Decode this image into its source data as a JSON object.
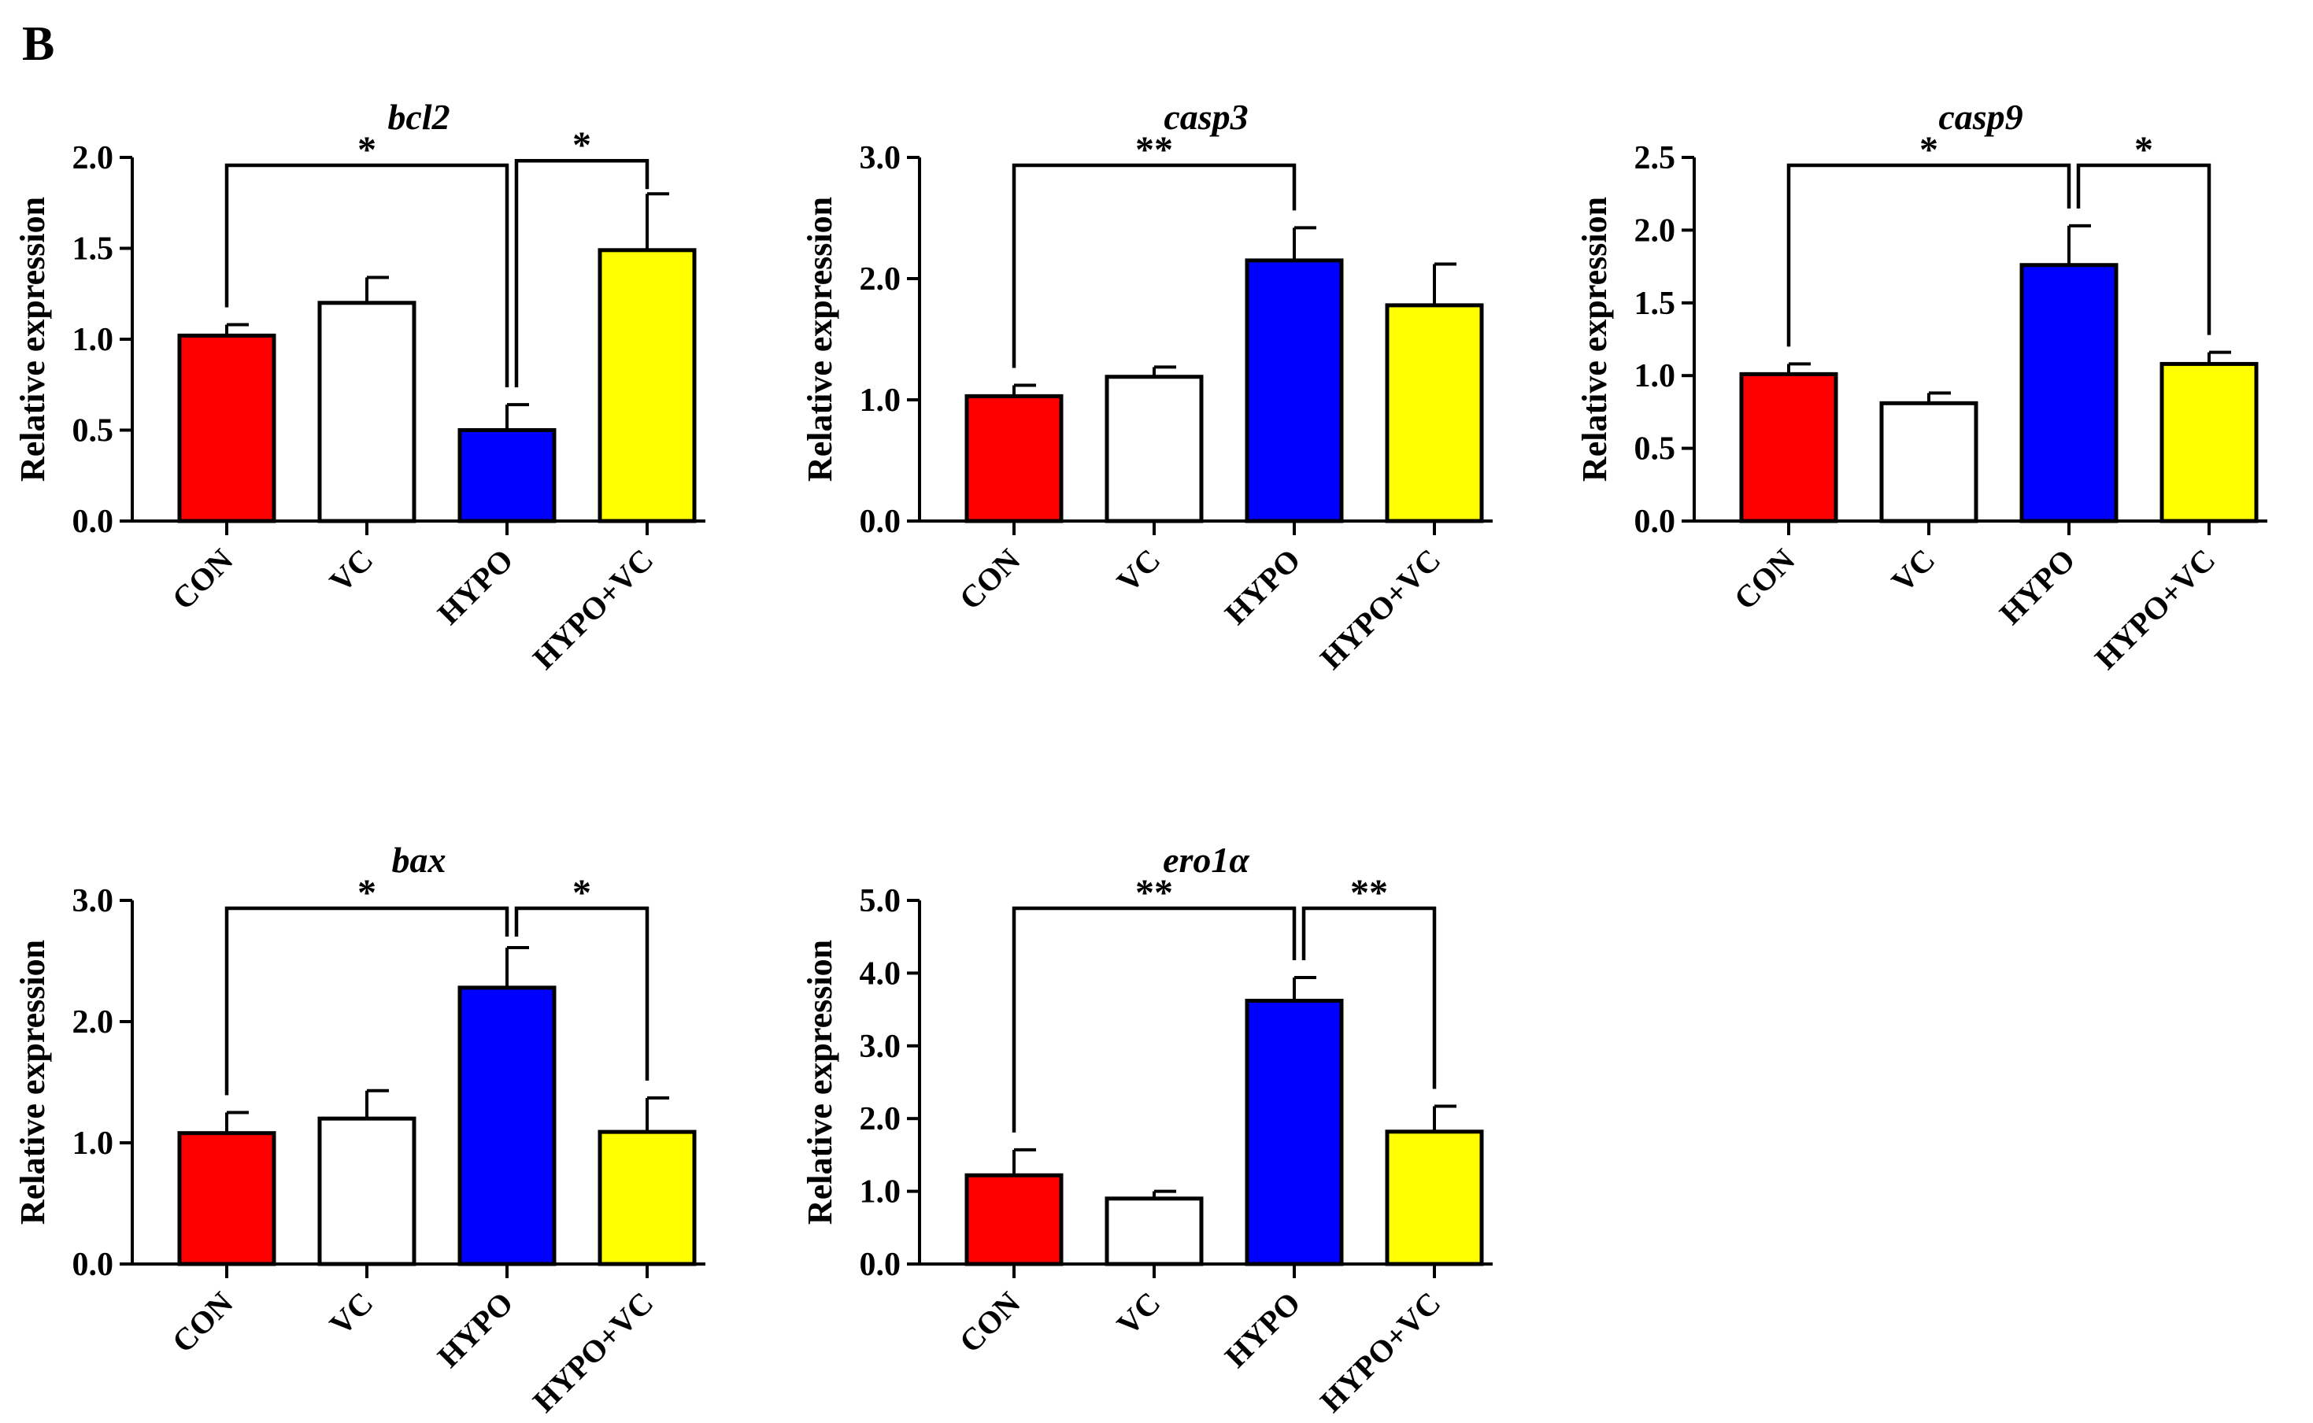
{
  "panel_label": "B",
  "colors": {
    "CON": "#ff0000",
    "VC": "#ffffff",
    "HYPO": "#0000ff",
    "HYPO+VC": "#ffff00",
    "stroke": "#000000"
  },
  "chart_data": [
    {
      "type": "bar",
      "title": "bcl2",
      "ylabel": "Relative expression",
      "categories": [
        "CON",
        "VC",
        "HYPO",
        "HYPO+VC"
      ],
      "values": [
        1.02,
        1.2,
        0.5,
        1.49
      ],
      "errors": [
        0.06,
        0.14,
        0.14,
        0.31
      ],
      "ylim": [
        0,
        2.0
      ],
      "yticks": [
        0.0,
        0.5,
        1.0,
        1.5,
        2.0
      ],
      "ytick_labels": [
        "0.0",
        "0.5",
        "1.0",
        "1.5",
        "2.0"
      ],
      "significance": [
        {
          "from": 0,
          "to": 2,
          "label": "*"
        },
        {
          "from": 2,
          "to": 3,
          "label": "*"
        }
      ]
    },
    {
      "type": "bar",
      "title": "casp3",
      "ylabel": "Relative expression",
      "categories": [
        "CON",
        "VC",
        "HYPO",
        "HYPO+VC"
      ],
      "values": [
        1.03,
        1.19,
        2.15,
        1.78
      ],
      "errors": [
        0.09,
        0.08,
        0.27,
        0.34
      ],
      "ylim": [
        0,
        3.0
      ],
      "yticks": [
        0.0,
        1.0,
        2.0,
        3.0
      ],
      "ytick_labels": [
        "0.0",
        "1.0",
        "2.0",
        "3.0"
      ],
      "significance": [
        {
          "from": 0,
          "to": 2,
          "label": "**"
        }
      ]
    },
    {
      "type": "bar",
      "title": "casp9",
      "ylabel": "Relative expression",
      "categories": [
        "CON",
        "VC",
        "HYPO",
        "HYPO+VC"
      ],
      "values": [
        1.01,
        0.81,
        1.76,
        1.08
      ],
      "errors": [
        0.07,
        0.07,
        0.27,
        0.08
      ],
      "ylim": [
        0,
        2.5
      ],
      "yticks": [
        0.0,
        0.5,
        1.0,
        1.5,
        2.0,
        2.5
      ],
      "ytick_labels": [
        "0.0",
        "0.5",
        "1.0",
        "1.5",
        "2.0",
        "2.5"
      ],
      "significance": [
        {
          "from": 0,
          "to": 2,
          "label": "*"
        },
        {
          "from": 2,
          "to": 3,
          "label": "*"
        }
      ]
    },
    {
      "type": "bar",
      "title": "bax",
      "ylabel": "Relative expression",
      "categories": [
        "CON",
        "VC",
        "HYPO",
        "HYPO+VC"
      ],
      "values": [
        1.08,
        1.2,
        2.28,
        1.09
      ],
      "errors": [
        0.17,
        0.23,
        0.33,
        0.28
      ],
      "ylim": [
        0,
        3.0
      ],
      "yticks": [
        0.0,
        1.0,
        2.0,
        3.0
      ],
      "ytick_labels": [
        "0.0",
        "1.0",
        "2.0",
        "3.0"
      ],
      "significance": [
        {
          "from": 0,
          "to": 2,
          "label": "*"
        },
        {
          "from": 2,
          "to": 3,
          "label": "*"
        }
      ]
    },
    {
      "type": "bar",
      "title": "ero1α",
      "ylabel": "Relative expression",
      "categories": [
        "CON",
        "VC",
        "HYPO",
        "HYPO+VC"
      ],
      "values": [
        1.22,
        0.9,
        3.62,
        1.82
      ],
      "errors": [
        0.35,
        0.1,
        0.32,
        0.35
      ],
      "ylim": [
        0,
        5.0
      ],
      "yticks": [
        0.0,
        1.0,
        2.0,
        3.0,
        4.0,
        5.0
      ],
      "ytick_labels": [
        "0.0",
        "1.0",
        "2.0",
        "3.0",
        "4.0",
        "5.0"
      ],
      "significance": [
        {
          "from": 0,
          "to": 2,
          "label": "**"
        },
        {
          "from": 2,
          "to": 3,
          "label": "**"
        }
      ]
    }
  ]
}
